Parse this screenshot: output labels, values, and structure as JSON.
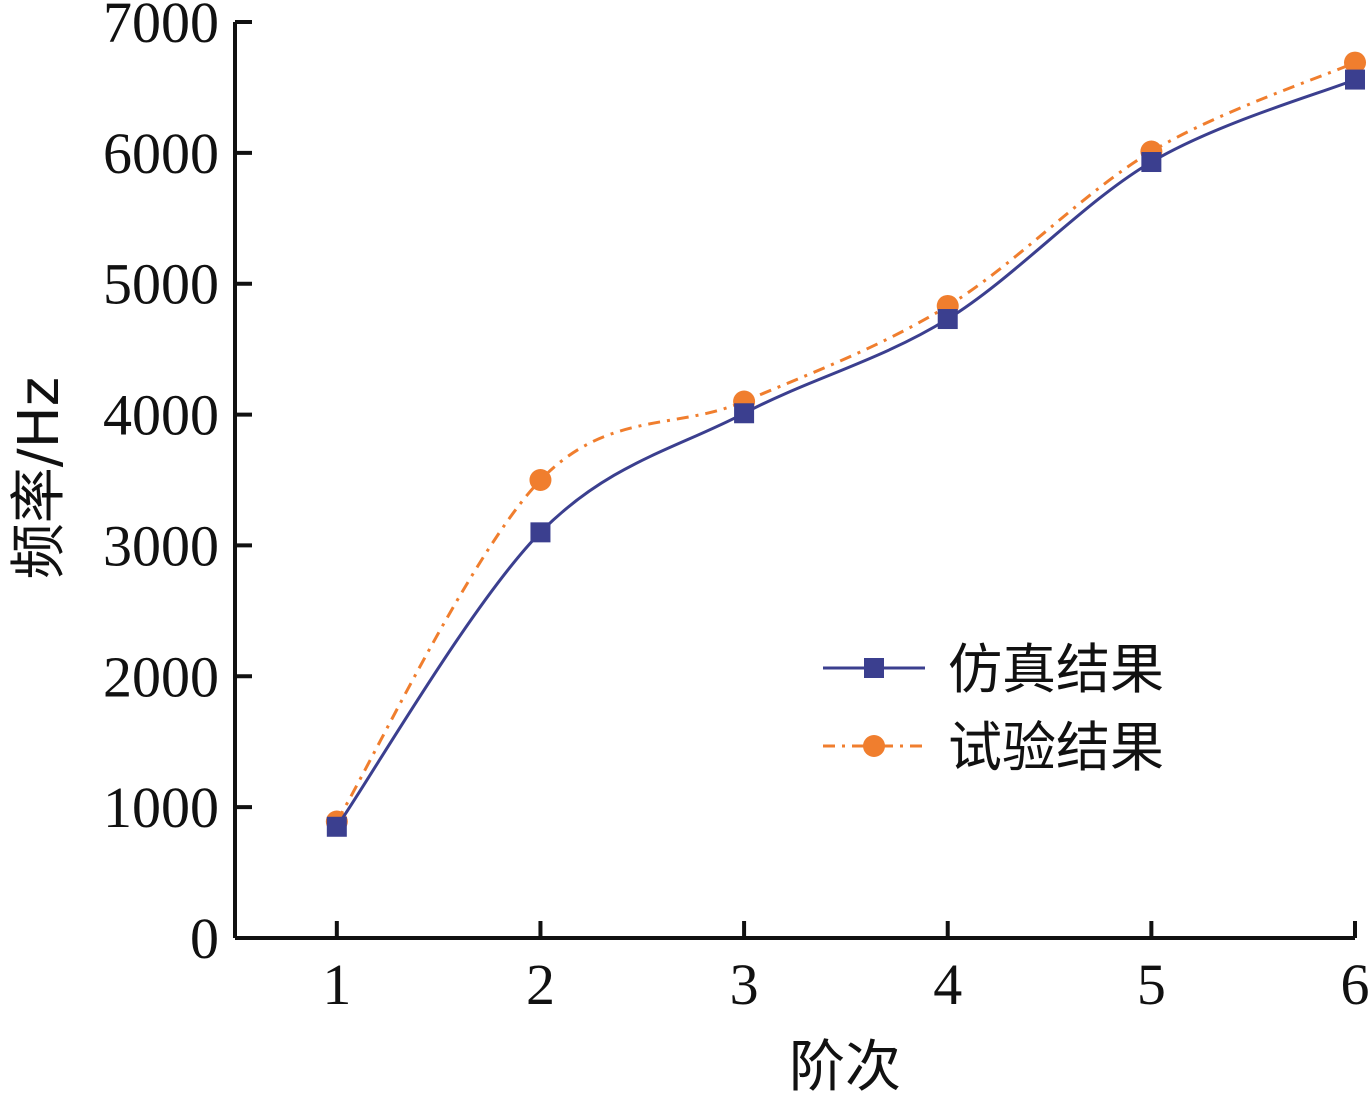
{
  "chart_data": {
    "type": "line",
    "title": "",
    "xlabel": "阶次",
    "ylabel": "频率/Hz",
    "x": [
      1,
      2,
      3,
      4,
      5,
      6
    ],
    "xlim": [
      0.5,
      6
    ],
    "ylim": [
      0,
      7000
    ],
    "x_ticks": [
      "1",
      "2",
      "3",
      "4",
      "5",
      "6"
    ],
    "y_ticks": [
      "0",
      "1000",
      "2000",
      "3000",
      "4000",
      "5000",
      "6000",
      "7000"
    ],
    "grid": false,
    "legend_position": "center-right",
    "series": [
      {
        "name": "仿真结果",
        "values": [
          850,
          3100,
          4010,
          4730,
          5930,
          6560
        ],
        "color": "#3b3f8f",
        "marker": "square",
        "line_style": "solid"
      },
      {
        "name": "试验结果",
        "values": [
          890,
          3500,
          4100,
          4830,
          6010,
          6690
        ],
        "color": "#f07e2e",
        "marker": "circle",
        "line_style": "dashdot"
      }
    ]
  }
}
